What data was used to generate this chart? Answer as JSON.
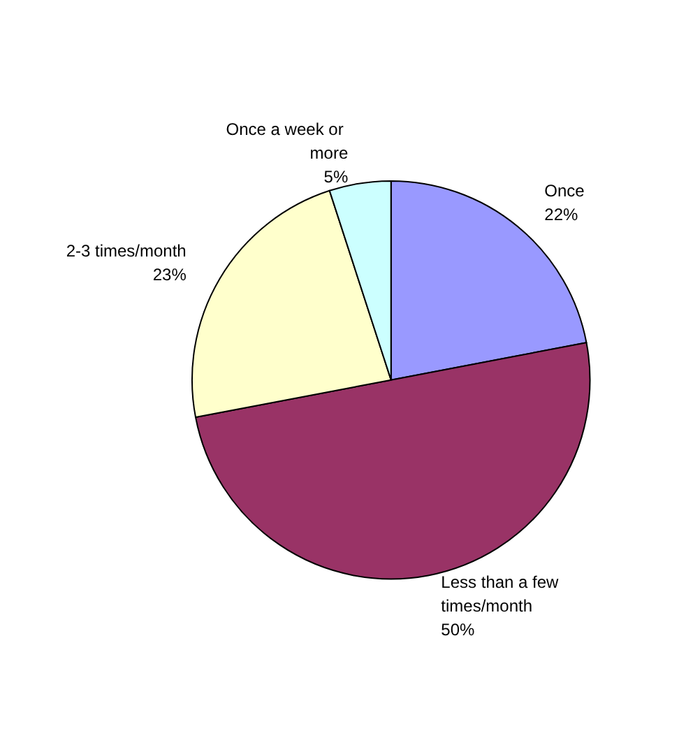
{
  "chart_data": {
    "type": "pie",
    "categories": [
      "Once",
      "Less than a few times/month",
      "2-3 times/month",
      "Once a week or more"
    ],
    "values": [
      22,
      50,
      23,
      5
    ],
    "colors": [
      "#9999ff",
      "#993366",
      "#ffffcc",
      "#ccffff"
    ],
    "value_labels": [
      "22%",
      "50%",
      "23%",
      "5%"
    ],
    "legend": false
  }
}
